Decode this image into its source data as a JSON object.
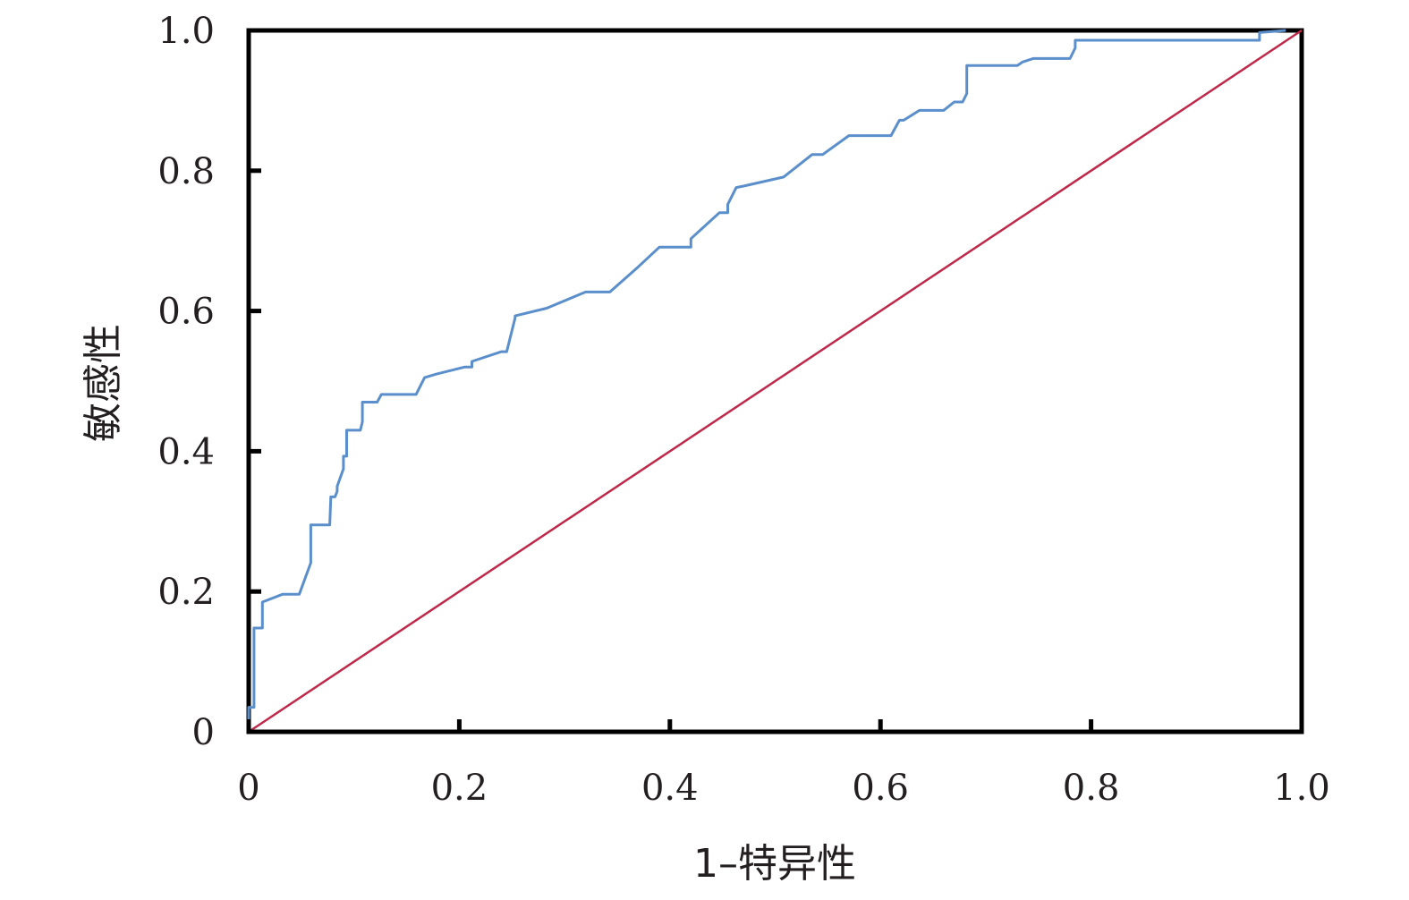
{
  "chart_data": {
    "type": "line",
    "title": "",
    "xlabel": "1–特异性",
    "ylabel": "敏感性",
    "xlim": [
      0,
      1
    ],
    "ylim": [
      0,
      1
    ],
    "grid": false,
    "x_ticks": [
      {
        "value": 0,
        "label": "0"
      },
      {
        "value": 0.2,
        "label": "0.2"
      },
      {
        "value": 0.4,
        "label": "0.4"
      },
      {
        "value": 0.6,
        "label": "0.6"
      },
      {
        "value": 0.8,
        "label": "0.8"
      },
      {
        "value": 1.0,
        "label": "1.0"
      }
    ],
    "y_ticks": [
      {
        "value": 0,
        "label": "0"
      },
      {
        "value": 0.2,
        "label": "0.2"
      },
      {
        "value": 0.4,
        "label": "0.4"
      },
      {
        "value": 0.6,
        "label": "0.6"
      },
      {
        "value": 0.8,
        "label": "0.8"
      },
      {
        "value": 1.0,
        "label": "1.0"
      }
    ],
    "series": [
      {
        "color": "#5b8fcc",
        "x": [
          0,
          0,
          0.005,
          0.005,
          0.013,
          0.013,
          0.032,
          0.046,
          0.048,
          0.059,
          0.059,
          0.077,
          0.078,
          0.082,
          0.084,
          0.084,
          0.09,
          0.09,
          0.093,
          0.093,
          0.106,
          0.108,
          0.108,
          0.122,
          0.126,
          0.126,
          0.159,
          0.167,
          0.178,
          0.205,
          0.212,
          0.212,
          0.24,
          0.245,
          0.253,
          0.253,
          0.283,
          0.32,
          0.343,
          0.37,
          0.39,
          0.42,
          0.42,
          0.447,
          0.455,
          0.455,
          0.463,
          0.47,
          0.508,
          0.535,
          0.545,
          0.57,
          0.61,
          0.618,
          0.622,
          0.637,
          0.66,
          0.67,
          0.678,
          0.682,
          0.682,
          0.73,
          0.735,
          0.745,
          0.78,
          0.785,
          0.785,
          0.96,
          0.96,
          0.985
        ],
        "y": [
          0,
          0.035,
          0.035,
          0.148,
          0.148,
          0.185,
          0.196,
          0.196,
          0.196,
          0.241,
          0.295,
          0.295,
          0.335,
          0.335,
          0.343,
          0.35,
          0.375,
          0.393,
          0.393,
          0.43,
          0.43,
          0.442,
          0.47,
          0.47,
          0.481,
          0.481,
          0.481,
          0.505,
          0.51,
          0.52,
          0.52,
          0.528,
          0.542,
          0.542,
          0.59,
          0.593,
          0.604,
          0.627,
          0.627,
          0.663,
          0.691,
          0.691,
          0.703,
          0.74,
          0.74,
          0.752,
          0.776,
          0.778,
          0.791,
          0.823,
          0.823,
          0.85,
          0.85,
          0.872,
          0.872,
          0.886,
          0.886,
          0.898,
          0.898,
          0.91,
          0.95,
          0.95,
          0.955,
          0.96,
          0.96,
          0.975,
          0.986,
          0.986,
          0.997,
          1.0
        ]
      },
      {
        "color": "#c0284a",
        "x": [
          0,
          1
        ],
        "y": [
          0,
          1
        ]
      }
    ]
  }
}
